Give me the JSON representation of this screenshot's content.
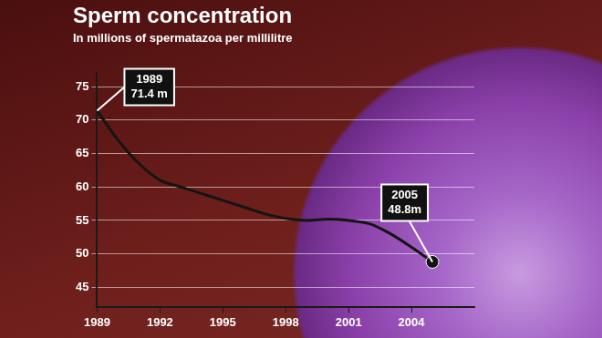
{
  "chart_data": {
    "type": "line",
    "title": "Sperm concentration",
    "subtitle": "In millions of spermatazoa per millilitre",
    "x": [
      1989,
      1990,
      1991,
      1992,
      1993,
      1994,
      1995,
      1996,
      1997,
      1998,
      1999,
      2000,
      2001,
      2002,
      2003,
      2004,
      2005
    ],
    "values": [
      71.4,
      67,
      63.5,
      61,
      60,
      59,
      58,
      57,
      56,
      55.3,
      55,
      55.2,
      55,
      54.5,
      53,
      51,
      48.8
    ],
    "color": "#141414",
    "xlim": [
      1989,
      2007
    ],
    "xticks": [
      1989,
      1992,
      1995,
      1998,
      2001,
      2004
    ],
    "ylim": [
      42,
      77
    ],
    "yticks": [
      45,
      50,
      55,
      60,
      65,
      70,
      75
    ],
    "grid": true,
    "annotations": [
      {
        "text": [
          "1989",
          "71.4 m"
        ],
        "x": 1989,
        "y": 71.4
      },
      {
        "text": [
          "2005",
          "48.8m"
        ],
        "x": 2005,
        "y": 48.8
      }
    ]
  }
}
